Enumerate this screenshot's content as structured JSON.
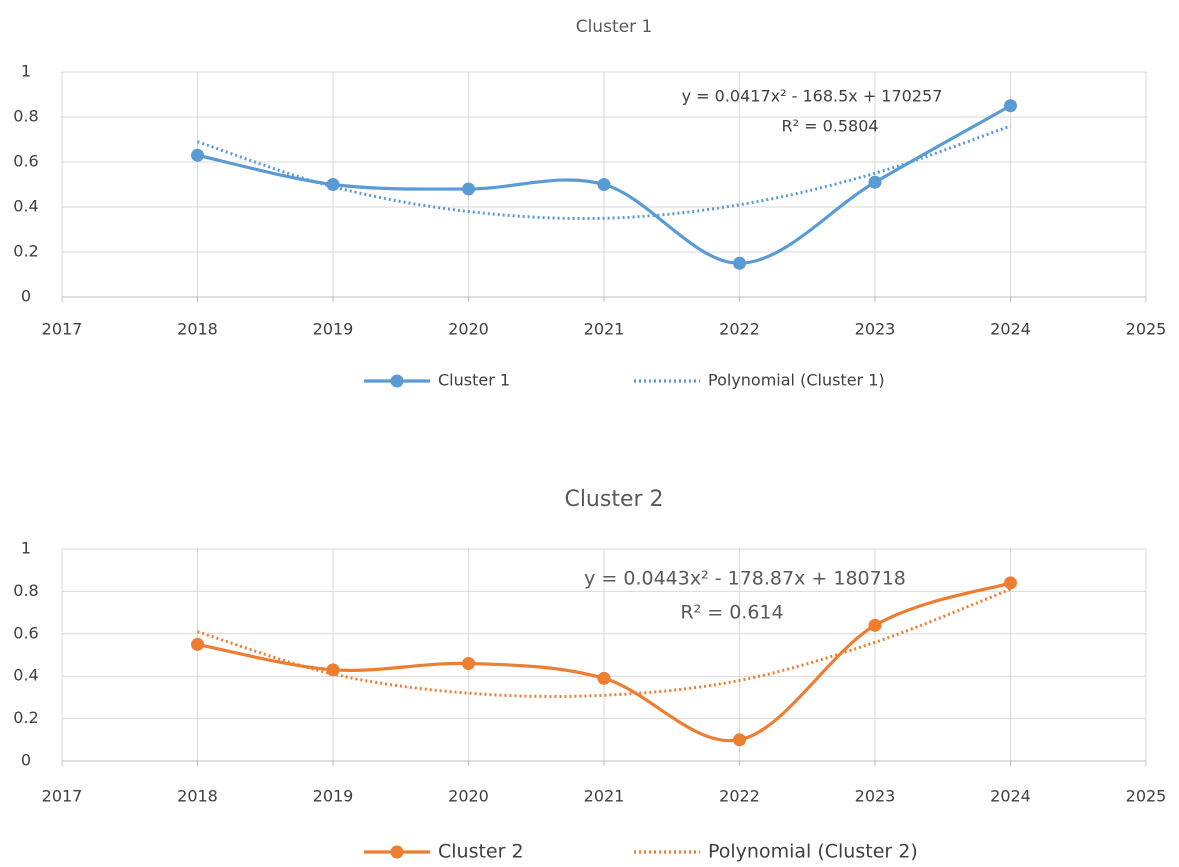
{
  "chart_data": [
    {
      "type": "line",
      "title": "Cluster  1",
      "x": [
        2018,
        2019,
        2020,
        2021,
        2022,
        2023,
        2024
      ],
      "series": [
        {
          "name": "Cluster  1",
          "color": "#5b9bd5",
          "values": [
            0.63,
            0.5,
            0.48,
            0.5,
            0.15,
            0.51,
            0.85
          ],
          "marker": true,
          "dash": false
        },
        {
          "name": "Polynomial (Cluster 1)",
          "color": "#5b9bd5",
          "values": [
            0.69,
            0.49,
            0.38,
            0.35,
            0.41,
            0.55,
            0.76
          ],
          "marker": false,
          "dash": true
        }
      ],
      "xlim": [
        2017,
        2025
      ],
      "xticks": [
        2017,
        2018,
        2019,
        2020,
        2021,
        2022,
        2023,
        2024,
        2025
      ],
      "ylim": [
        0,
        1
      ],
      "yticks": [
        0,
        0.2,
        0.4,
        0.6,
        0.8,
        1
      ],
      "grid": true,
      "legend": "bottom",
      "annotations": [
        "y = 0.0417x² - 168.5x + 170257",
        "R² = 0.5804"
      ]
    },
    {
      "type": "line",
      "title": "Cluster  2",
      "x": [
        2018,
        2019,
        2020,
        2021,
        2022,
        2023,
        2024
      ],
      "series": [
        {
          "name": "Cluster  2",
          "color": "#ed7d31",
          "values": [
            0.55,
            0.43,
            0.46,
            0.39,
            0.1,
            0.64,
            0.84
          ],
          "marker": true,
          "dash": false
        },
        {
          "name": "Polynomial (Cluster 2)",
          "color": "#ed7d31",
          "values": [
            0.61,
            0.41,
            0.32,
            0.31,
            0.38,
            0.56,
            0.81
          ],
          "marker": false,
          "dash": true
        }
      ],
      "xlim": [
        2017,
        2025
      ],
      "xticks": [
        2017,
        2018,
        2019,
        2020,
        2021,
        2022,
        2023,
        2024,
        2025
      ],
      "ylim": [
        0,
        1
      ],
      "yticks": [
        0,
        0.2,
        0.4,
        0.6,
        0.8,
        1
      ],
      "grid": true,
      "legend": "bottom",
      "annotations": [
        "y = 0.0443x² - 178.87x + 180718",
        "R² = 0.614"
      ]
    }
  ]
}
